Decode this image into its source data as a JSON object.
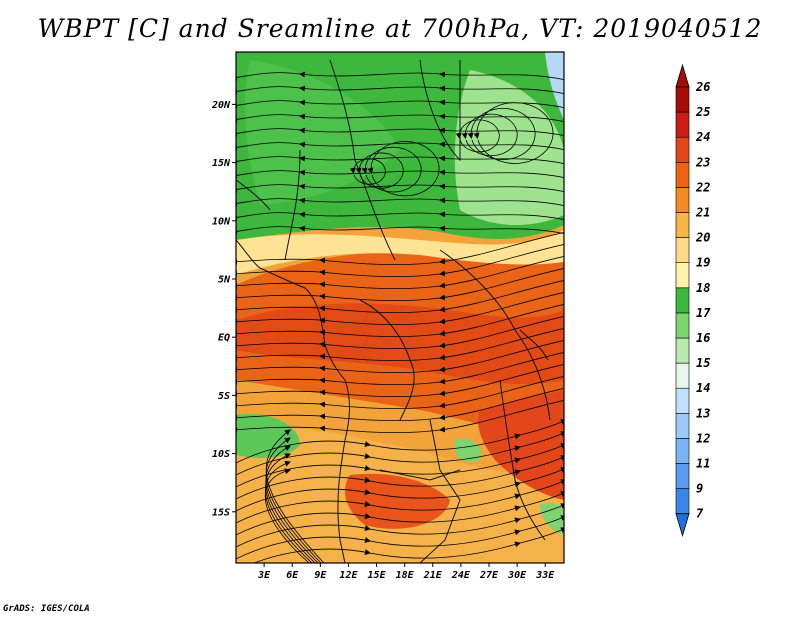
{
  "title": "WBPT [C] and Sreamline at 700hPa, VT: 2019040512",
  "credit": "GrADS: IGES/COLA",
  "map": {
    "lat_labels": [
      "20N",
      "15N",
      "10N",
      "5N",
      "EQ",
      "5S",
      "10S",
      "15S"
    ],
    "lat_values": [
      20,
      15,
      10,
      5,
      0,
      -5,
      -10,
      -15
    ],
    "lon_labels": [
      "3E",
      "6E",
      "9E",
      "12E",
      "15E",
      "18E",
      "21E",
      "24E",
      "27E",
      "30E",
      "33E"
    ],
    "lon_values": [
      3,
      6,
      9,
      12,
      15,
      18,
      21,
      24,
      27,
      30,
      33
    ],
    "lon_range": [
      0,
      35
    ],
    "lat_range": [
      -19.4,
      24.5
    ]
  },
  "colorbar": {
    "labels": [
      "7",
      "9",
      "11",
      "12",
      "13",
      "14",
      "15",
      "16",
      "17",
      "18",
      "19",
      "20",
      "21",
      "22",
      "23",
      "24",
      "25",
      "26"
    ],
    "colors": [
      "#1f6fdc",
      "#3a86e8",
      "#5a9cf0",
      "#7ab4f5",
      "#9ccaf8",
      "#c2e0fb",
      "#e6f6ea",
      "#b8eab0",
      "#79d76c",
      "#3cb83c",
      "#fff3a8",
      "#ffd98a",
      "#f9b446",
      "#f38a24",
      "#ec6316",
      "#e0461a",
      "#cc1e10",
      "#a50c06"
    ]
  },
  "streamlines": {
    "legend": "streamlines of 700hPa wind"
  }
}
